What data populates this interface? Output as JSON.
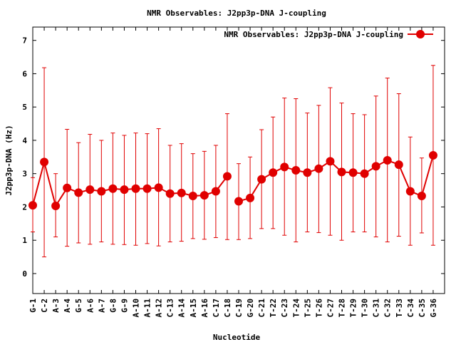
{
  "chart_data": {
    "type": "line",
    "title": "NMR Observables: J2pp3p-DNA J-coupling",
    "xlabel": "Nucleotide",
    "ylabel": "J2pp3p-DNA (Hz)",
    "ylim": [
      -0.6,
      7.4
    ],
    "yticks": [
      0,
      1,
      2,
      3,
      4,
      5,
      6,
      7
    ],
    "xlim": [
      0,
      36
    ],
    "legend_position": "top-right",
    "grid": false,
    "series_color": "#e00000",
    "categories": [
      "G-1",
      "C-2",
      "A-3",
      "A-4",
      "G-5",
      "A-6",
      "A-7",
      "G-8",
      "G-9",
      "A-10",
      "A-11",
      "A-12",
      "C-13",
      "A-14",
      "A-15",
      "A-16",
      "C-17",
      "C-18",
      "C-19",
      "G-20",
      "C-21",
      "T-22",
      "C-23",
      "T-24",
      "T-25",
      "T-26",
      "C-27",
      "T-28",
      "T-29",
      "T-30",
      "C-31",
      "C-32",
      "T-33",
      "C-34",
      "C-35",
      "G-36"
    ],
    "series": [
      {
        "name": "NMR Observables: J2pp3p-DNA J-coupling",
        "values": [
          2.05,
          3.35,
          2.03,
          2.57,
          2.43,
          2.52,
          2.47,
          2.55,
          2.52,
          2.55,
          2.55,
          2.58,
          2.4,
          2.42,
          2.33,
          2.35,
          2.47,
          2.92,
          2.17,
          2.27,
          2.83,
          3.03,
          3.2,
          3.1,
          3.03,
          3.15,
          3.37,
          3.05,
          3.03,
          3.0,
          3.22,
          3.4,
          3.27,
          2.47,
          2.33,
          3.55
        ],
        "error_low": [
          1.25,
          0.5,
          1.1,
          0.82,
          0.92,
          0.88,
          0.95,
          0.88,
          0.87,
          0.85,
          0.9,
          0.83,
          0.95,
          0.97,
          1.05,
          1.03,
          1.08,
          1.02,
          1.02,
          1.05,
          1.35,
          1.35,
          1.15,
          0.95,
          1.25,
          1.23,
          1.15,
          1.0,
          1.25,
          1.25,
          1.1,
          0.95,
          1.12,
          0.85,
          1.22,
          0.85
        ],
        "error_high": [
          2.88,
          6.18,
          3.0,
          4.33,
          3.93,
          4.18,
          4.0,
          4.22,
          4.15,
          4.22,
          4.2,
          4.35,
          3.85,
          3.9,
          3.6,
          3.67,
          3.85,
          4.8,
          3.3,
          3.5,
          4.32,
          4.7,
          5.27,
          5.25,
          4.82,
          5.05,
          5.58,
          5.12,
          4.8,
          4.77,
          5.33,
          5.87,
          5.4,
          4.1,
          3.47,
          6.25
        ],
        "breaks_after": [
          17
        ]
      }
    ]
  }
}
